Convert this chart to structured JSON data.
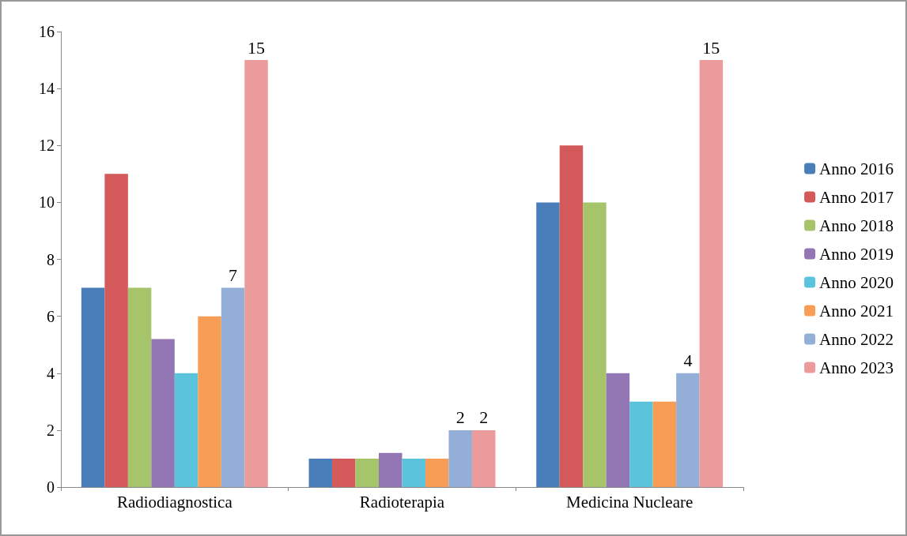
{
  "chart_data": {
    "type": "bar",
    "categories": [
      "Radiodiagnostica",
      "Radioterapia",
      "Medicina Nucleare"
    ],
    "series": [
      {
        "name": "Anno 2016",
        "color": "#4a7ebb",
        "values": [
          7,
          1,
          10
        ]
      },
      {
        "name": "Anno 2017",
        "color": "#d4595a",
        "values": [
          11,
          1,
          12
        ]
      },
      {
        "name": "Anno 2018",
        "color": "#a6c46a",
        "values": [
          7,
          1,
          10
        ]
      },
      {
        "name": "Anno 2019",
        "color": "#9377b4",
        "values": [
          5.2,
          1.2,
          4
        ]
      },
      {
        "name": "Anno 2020",
        "color": "#5cc3dd",
        "values": [
          4,
          1,
          3
        ]
      },
      {
        "name": "Anno 2021",
        "color": "#f79d55",
        "values": [
          6,
          1,
          3
        ]
      },
      {
        "name": "Anno 2022",
        "color": "#93afd8",
        "values": [
          7,
          2,
          4
        ],
        "value_labels": [
          "7",
          "2",
          "4"
        ]
      },
      {
        "name": "Anno 2023",
        "color": "#eb9b9b",
        "values": [
          15,
          2,
          15
        ],
        "value_labels": [
          "15",
          "2",
          "15"
        ]
      }
    ],
    "ylim": [
      0,
      16
    ],
    "yticks": [
      0,
      2,
      4,
      6,
      8,
      10,
      12,
      14,
      16
    ],
    "grid": false,
    "legend": "right"
  }
}
